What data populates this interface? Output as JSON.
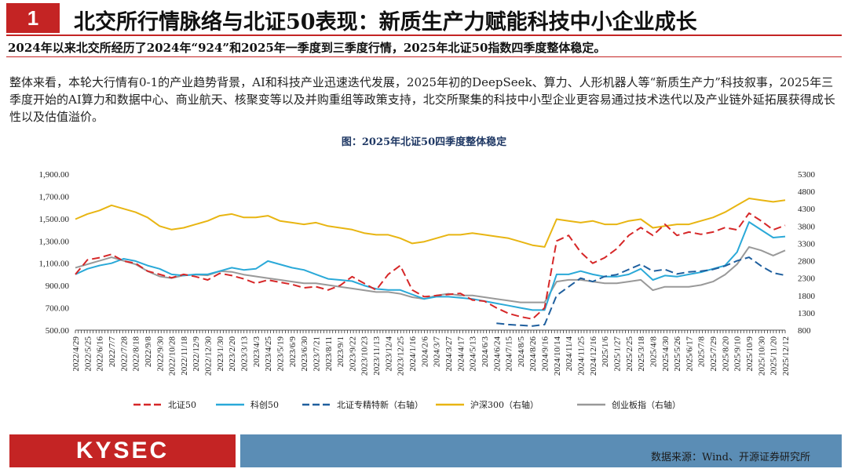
{
  "header": {
    "number": "1",
    "title": "北交所行情脉络与北证50表现：新质生产力赋能科技中小企业成长"
  },
  "summary": "2024年以来北交所经历了2024年“924”和2025年一季度到三季度行情，2025年北证50指数四季度整体稳定。",
  "paragraph": "整体来看，本轮大行情有0-1的产业趋势背景，AI和科技产业迅速迭代发展，2025年初的DeepSeek、算力、人形机器人等“新质生产力”科技叙事，2025年三季度开始的AI算力和数据中心、商业航天、核聚变等以及并购重组等政策支持，北交所聚集的科技中小型企业更容易通过技术迭代以及产业链外延拓展获得成长性以及估值溢价。",
  "chart_title": "图：2025年北证50四季度整体稳定",
  "footer": {
    "logo": "KYSEC",
    "source": "数据来源：Wind、开源证券研究所"
  },
  "colors": {
    "accent": "#c42424",
    "bz50": "#d62728",
    "kc50": "#2aa9d8",
    "bzzj": "#1f5f9e",
    "hs300": "#e8b512",
    "cyb": "#999999"
  },
  "chart_data": {
    "type": "line",
    "x": [
      "2022/4/29",
      "2022/5/25",
      "2022/6/16",
      "2022/7/7",
      "2022/7/28",
      "2022/8/18",
      "2022/9/8",
      "2022/9/30",
      "2022/10/28",
      "2022/11/18",
      "2022/12/9",
      "2022/12/30",
      "2023/1/30",
      "2023/2/20",
      "2023/3/13",
      "2023/4/3",
      "2023/4/25",
      "2023/5/19",
      "2023/6/9",
      "2023/6/30",
      "2023/7/21",
      "2023/8/11",
      "2023/9/1",
      "2023/9/22",
      "2023/10/23",
      "2023/11/13",
      "2023/12/4",
      "2023/12/25",
      "2024/1/16",
      "2024/2/6",
      "2024/3/7",
      "2024/3/27",
      "2024/4/17",
      "2024/5/13",
      "2024/6/3",
      "2024/6/24",
      "2024/7/15",
      "2024/8/5",
      "2024/8/26",
      "2024/9/16",
      "2024/10/14",
      "2024/11/4",
      "2024/11/25",
      "2024/12/16",
      "2025/1/6",
      "2025/1/27",
      "2025/2/25",
      "2025/3/18",
      "2025/4/8",
      "2025/4/30",
      "2025/5/26",
      "2025/6/17",
      "2025/7/8",
      "2025/7/29",
      "2025/8/20",
      "2025/9/10",
      "2025/10/9",
      "2025/10/30",
      "2025/11/20",
      "2025/12/12"
    ],
    "left_axis": {
      "min": 500,
      "max": 1900,
      "ticks": [
        "1,900.00",
        "1,700.00",
        "1,500.00",
        "1,300.00",
        "1,100.00",
        "900.00",
        "700.00",
        "500.00"
      ]
    },
    "right_axis": {
      "min": 800,
      "max": 5300,
      "ticks": [
        "5300",
        "4800",
        "4300",
        "3800",
        "3300",
        "2800",
        "2300",
        "1800",
        "1300",
        "800"
      ]
    },
    "series": [
      {
        "name": "北证50",
        "axis": "left",
        "dash": "dash",
        "values": [
          1000,
          1130,
          1150,
          1180,
          1120,
          1100,
          1030,
          1000,
          970,
          1000,
          980,
          950,
          1010,
          990,
          960,
          920,
          950,
          930,
          910,
          880,
          890,
          860,
          900,
          980,
          920,
          860,
          1000,
          1080,
          860,
          800,
          810,
          820,
          830,
          770,
          760,
          700,
          650,
          620,
          600,
          700,
          1300,
          1350,
          1200,
          1100,
          1150,
          1230,
          1350,
          1420,
          1350,
          1450,
          1350,
          1380,
          1360,
          1380,
          1420,
          1400,
          1550,
          1480,
          1400,
          1440
        ]
      },
      {
        "name": "科创50",
        "axis": "left",
        "dash": "solid",
        "values": [
          1000,
          1050,
          1080,
          1100,
          1140,
          1120,
          1080,
          1050,
          1000,
          990,
          1000,
          1000,
          1030,
          1060,
          1040,
          1050,
          1120,
          1090,
          1060,
          1040,
          1000,
          960,
          950,
          940,
          900,
          870,
          860,
          860,
          820,
          780,
          800,
          800,
          790,
          780,
          760,
          740,
          720,
          700,
          680,
          680,
          1000,
          1000,
          1030,
          1000,
          980,
          980,
          1000,
          1050,
          950,
          990,
          980,
          1000,
          1020,
          1050,
          1080,
          1200,
          1470,
          1400,
          1330,
          1340
        ]
      },
      {
        "name": "北证专精特新（右轴）",
        "axis": "right",
        "dash": "dash",
        "values": [
          null,
          null,
          null,
          null,
          null,
          null,
          null,
          null,
          null,
          null,
          null,
          null,
          null,
          null,
          null,
          null,
          null,
          null,
          null,
          null,
          null,
          null,
          null,
          null,
          null,
          null,
          null,
          null,
          null,
          null,
          null,
          null,
          null,
          null,
          null,
          1000,
          960,
          940,
          920,
          960,
          1800,
          2050,
          2300,
          2200,
          2350,
          2400,
          2550,
          2700,
          2500,
          2550,
          2420,
          2480,
          2500,
          2550,
          2650,
          2800,
          2900,
          2650,
          2450,
          2380
        ]
      },
      {
        "name": "沪深300（右轴）",
        "axis": "right",
        "dash": "solid",
        "values": [
          4000,
          4150,
          4250,
          4400,
          4300,
          4200,
          4050,
          3800,
          3700,
          3750,
          3850,
          3950,
          4100,
          4150,
          4050,
          4050,
          4100,
          3950,
          3900,
          3850,
          3900,
          3800,
          3750,
          3700,
          3600,
          3550,
          3550,
          3450,
          3300,
          3350,
          3450,
          3550,
          3550,
          3600,
          3550,
          3500,
          3450,
          3350,
          3250,
          3200,
          4000,
          3950,
          3900,
          3950,
          3850,
          3850,
          3950,
          4000,
          3750,
          3800,
          3850,
          3850,
          3950,
          4050,
          4200,
          4400,
          4600,
          4550,
          4500,
          4550
        ]
      },
      {
        "name": "创业板指（右轴）",
        "axis": "right",
        "dash": "solid",
        "values": [
          2600,
          2700,
          2800,
          2900,
          2800,
          2700,
          2500,
          2350,
          2300,
          2380,
          2400,
          2380,
          2500,
          2480,
          2400,
          2350,
          2300,
          2250,
          2200,
          2150,
          2150,
          2100,
          2050,
          2000,
          1950,
          1900,
          1900,
          1850,
          1750,
          1700,
          1800,
          1850,
          1800,
          1800,
          1750,
          1700,
          1650,
          1600,
          1600,
          1600,
          2200,
          2250,
          2250,
          2200,
          2150,
          2150,
          2200,
          2250,
          1950,
          2050,
          2050,
          2050,
          2100,
          2200,
          2400,
          2700,
          3200,
          3100,
          2950,
          3100
        ]
      }
    ]
  }
}
